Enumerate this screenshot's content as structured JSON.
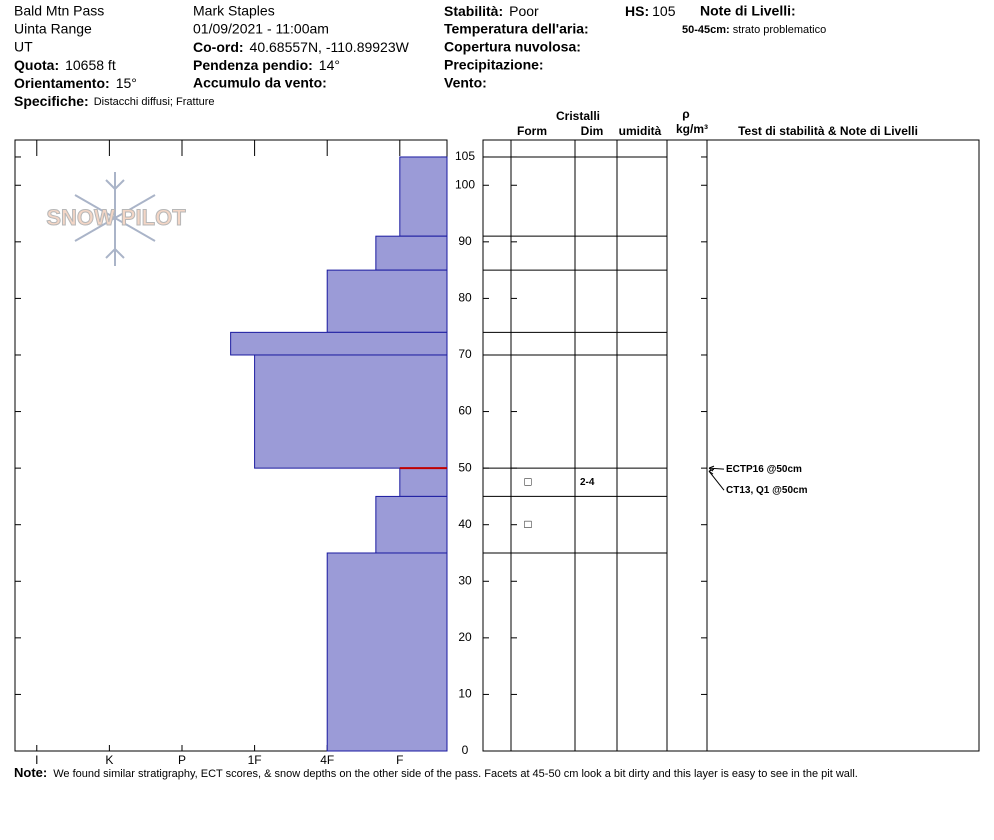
{
  "header": {
    "location": "Bald Mtn Pass",
    "range": "Uinta Range",
    "state": "UT",
    "elevation_label": "Quota:",
    "elevation": "10658 ft",
    "aspect_label": "Orientamento:",
    "aspect": "15°",
    "specifics_label": "Specifiche:",
    "specifics": "Distacchi diffusi; Fratture",
    "observer": "Mark Staples",
    "datetime": "01/09/2021 - 11:00am",
    "coord_label": "Co-ord:",
    "coord": "40.68557N, -110.89923W",
    "slope_label": "Pendenza pendio:",
    "slope": "14°",
    "wind_loading_label": "Accumulo da vento:",
    "stability_label": "Stabilità:",
    "stability": "Poor",
    "air_temp_label": "Temperatura dell'aria:",
    "sky_label": "Copertura nuvolosa:",
    "precip_label": "Precipitazione:",
    "wind_label": "Vento:",
    "hs_label": "HS:",
    "hs": 105,
    "layer_notes_label": "Note di Livelli:",
    "layer_note_range": "50-45cm:",
    "layer_note": "strato problematico",
    "logo": "SNOW PILOT"
  },
  "table_headers": {
    "crystals": "Cristalli",
    "form": "Form",
    "size": "Dim",
    "moisture": "umidità",
    "density": "ρ",
    "density_unit": "kg/m³",
    "tests": "Test di stabilità & Note di Livelli"
  },
  "chart_data": {
    "type": "snow-profile",
    "color": "#9b9bd7",
    "xlim": [
      6.3,
      0.35
    ],
    "xticks": [
      {
        "value": 6,
        "label": "I"
      },
      {
        "value": 5,
        "label": "K"
      },
      {
        "value": 4,
        "label": "P"
      },
      {
        "value": 3,
        "label": "1F"
      },
      {
        "value": 2,
        "label": "4F"
      },
      {
        "value": 1,
        "label": "F"
      }
    ],
    "ylim": [
      0,
      108
    ],
    "yticks": [
      0,
      10,
      20,
      30,
      40,
      50,
      60,
      70,
      80,
      90,
      100,
      105
    ],
    "layers": [
      {
        "top": 105,
        "bottom": 91,
        "hardness": 1
      },
      {
        "top": 91,
        "bottom": 85,
        "hardness": 1.33
      },
      {
        "top": 85,
        "bottom": 74,
        "hardness": 2
      },
      {
        "top": 74,
        "bottom": 70,
        "hardness": 3.33
      },
      {
        "top": 70,
        "bottom": 50,
        "hardness": 3
      },
      {
        "top": 50,
        "bottom": 45,
        "hardness": 1,
        "form": "□",
        "size": "2-4"
      },
      {
        "top": 45,
        "bottom": 35,
        "hardness": 1.33,
        "form": "□"
      },
      {
        "top": 35,
        "bottom": 0,
        "hardness": 2
      }
    ],
    "problem_layer": {
      "depth": 50,
      "color": "#c00000"
    },
    "tests": [
      {
        "depth": 50,
        "label": "ECTP16 @50cm"
      },
      {
        "depth": 50,
        "label": "CT13, Q1 @50cm"
      }
    ]
  },
  "note_label": "Note:",
  "note": "We found similar stratigraphy, ECT scores, & snow depths on the other side of the pass. Facets at 45-50 cm look a bit dirty and this layer is easy to see in the pit wall."
}
